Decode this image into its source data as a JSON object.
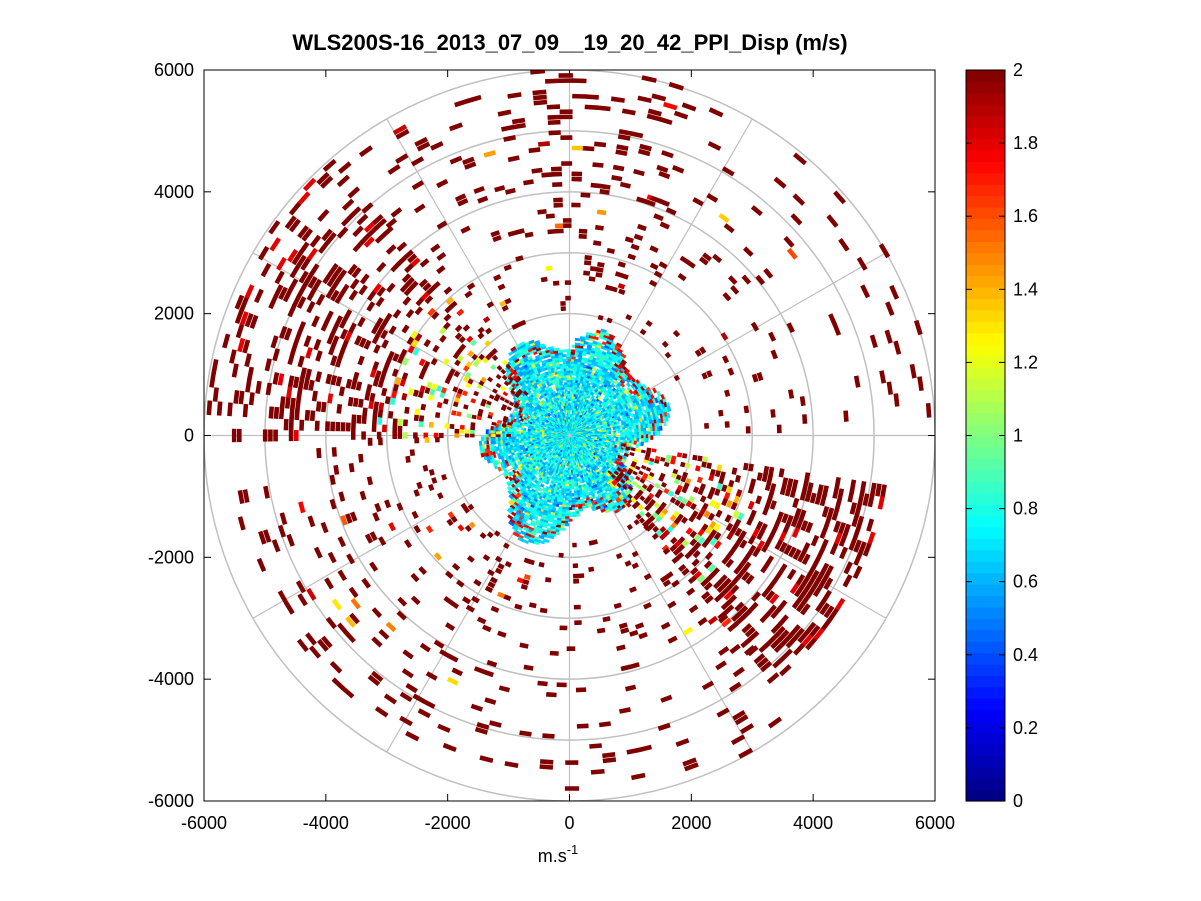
{
  "chart_data": {
    "type": "heatmap",
    "subtype": "polar-ppi",
    "title": "WLS200S-16_2013_07_09__19_20_42_PPI_Disp (m/s)",
    "xlabel": "m.s",
    "xlabel_superscript": "-1",
    "ylabel": "",
    "xlim": [
      -6000,
      6000
    ],
    "ylim": [
      -6000,
      6000
    ],
    "x_ticks": [
      {
        "value": -6000,
        "label": "-6000"
      },
      {
        "value": -4000,
        "label": "-4000"
      },
      {
        "value": -2000,
        "label": "-2000"
      },
      {
        "value": 0,
        "label": "0"
      },
      {
        "value": 2000,
        "label": "2000"
      },
      {
        "value": 4000,
        "label": "4000"
      },
      {
        "value": 6000,
        "label": "6000"
      }
    ],
    "y_ticks": [
      {
        "value": 6000,
        "label": "6000"
      },
      {
        "value": 4000,
        "label": "4000"
      },
      {
        "value": 2000,
        "label": "2000"
      },
      {
        "value": 0,
        "label": "0"
      },
      {
        "value": -2000,
        "label": "-2000"
      },
      {
        "value": -4000,
        "label": "-4000"
      },
      {
        "value": -6000,
        "label": "-6000"
      }
    ],
    "polar_grid": {
      "range_rings": [
        1000,
        2000,
        3000,
        4000,
        5000,
        6000
      ],
      "spokes_deg": [
        0,
        30,
        60,
        90,
        120,
        150,
        180,
        210,
        240,
        270,
        300,
        330
      ]
    },
    "colorbar": {
      "colormap": "jet",
      "range": [
        0,
        2
      ],
      "ticks": [
        {
          "value": 0,
          "label": "0"
        },
        {
          "value": 0.2,
          "label": "0.2"
        },
        {
          "value": 0.4,
          "label": "0.4"
        },
        {
          "value": 0.6,
          "label": "0.6"
        },
        {
          "value": 0.8,
          "label": "0.8"
        },
        {
          "value": 1,
          "label": "1"
        },
        {
          "value": 1.2,
          "label": "1.2"
        },
        {
          "value": 1.4,
          "label": "1.4"
        },
        {
          "value": 1.6,
          "label": "1.6"
        },
        {
          "value": 1.8,
          "label": "1.8"
        },
        {
          "value": 2,
          "label": "2"
        }
      ]
    },
    "dense_region": {
      "max_range": 1900,
      "mean_value": 0.72,
      "note": "dense near-range core dominated by values 0.6-0.9 m/s"
    },
    "sectors": [
      {
        "from_deg": 270,
        "to_deg": 320,
        "r_min": 1000,
        "r_max": 6000,
        "density": 0.35,
        "value_mix": "high"
      },
      {
        "from_deg": 100,
        "to_deg": 140,
        "r_min": 900,
        "r_max": 5300,
        "density": 0.45,
        "value_mix": "high"
      },
      {
        "from_deg": 190,
        "to_deg": 255,
        "r_min": 2000,
        "r_max": 5600,
        "density": 0.12,
        "value_mix": "saturated"
      },
      {
        "from_deg": 355,
        "to_deg": 20,
        "r_min": 2000,
        "r_max": 6000,
        "density": 0.2,
        "value_mix": "saturated"
      },
      {
        "from_deg": 20,
        "to_deg": 90,
        "r_min": 2000,
        "r_max": 6000,
        "density": 0.07,
        "value_mix": "saturated"
      },
      {
        "from_deg": 140,
        "to_deg": 190,
        "r_min": 1800,
        "r_max": 6000,
        "density": 0.08,
        "value_mix": "saturated"
      },
      {
        "from_deg": 320,
        "to_deg": 355,
        "r_min": 2000,
        "r_max": 5800,
        "density": 0.1,
        "value_mix": "saturated"
      },
      {
        "from_deg": 255,
        "to_deg": 270,
        "r_min": 2000,
        "r_max": 5600,
        "density": 0.06,
        "value_mix": "saturated"
      }
    ]
  }
}
